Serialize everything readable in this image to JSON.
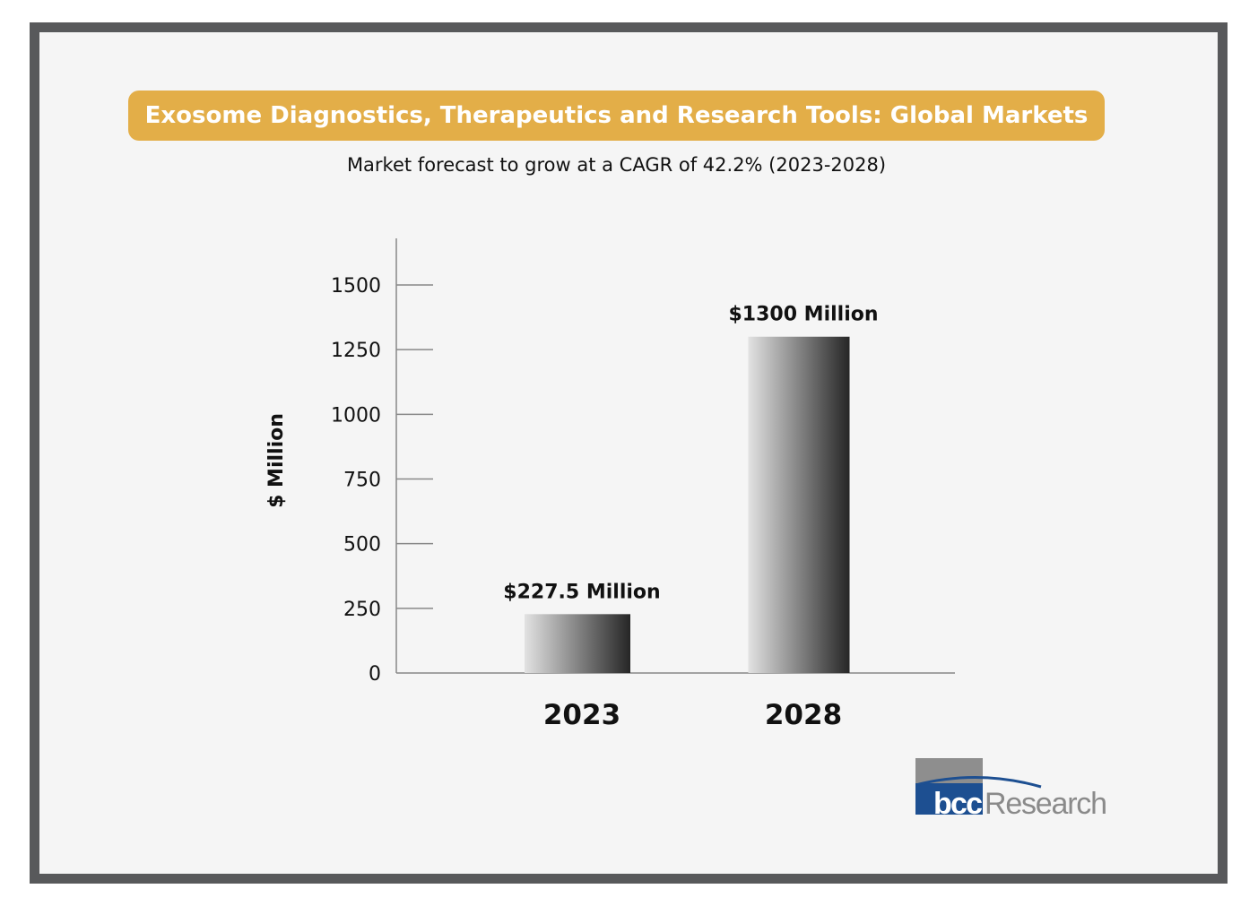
{
  "chart_data": {
    "type": "bar",
    "title": "Exosome Diagnostics, Therapeutics and Research Tools: Global Markets",
    "subtitle": "Market forecast to grow at a CAGR of 42.2% (2023-2028)",
    "xlabel": "",
    "ylabel": "$ Million",
    "categories": [
      "2023",
      "2028"
    ],
    "values": [
      227.5,
      1300
    ],
    "data_labels": [
      "$227.5 Million",
      "$1300 Million"
    ],
    "yticks": [
      0,
      250,
      500,
      750,
      1000,
      1250,
      1500
    ],
    "ylim": [
      0,
      1680
    ],
    "grid": false,
    "colors": {
      "banner": "#e3ae48",
      "frame": "#58595b",
      "bar_light": "#e2e2e2",
      "bar_dark": "#262626"
    }
  },
  "logo": {
    "text": "bccResearch"
  }
}
